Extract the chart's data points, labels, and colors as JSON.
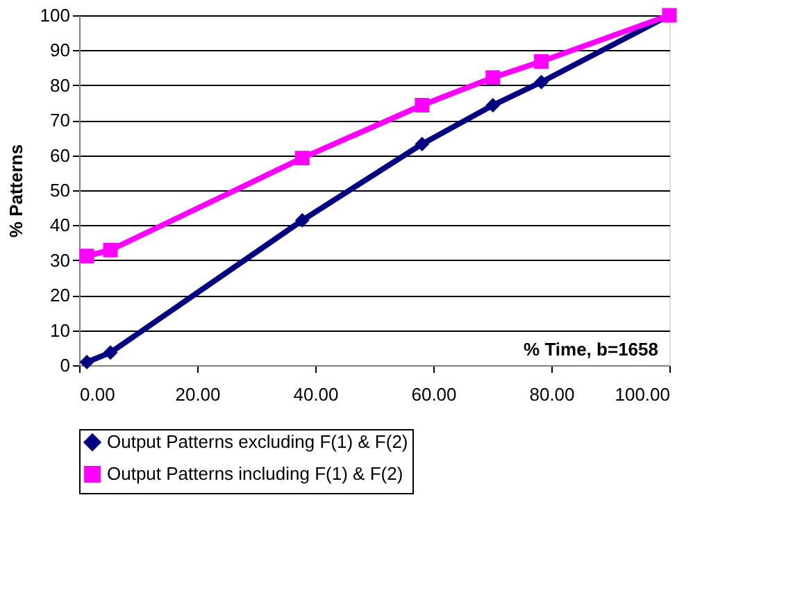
{
  "chart_data": {
    "type": "line",
    "xlabel": "% Time, b=1658",
    "ylabel": "% Patterns",
    "x": [
      1.3,
      5.3,
      37.8,
      58.1,
      70.1,
      78.3,
      100
    ],
    "series": [
      {
        "name": "Output Patterns excluding F(1) & F(2)",
        "color": "#000080",
        "marker": "diamond",
        "values": [
          0.9,
          3.6,
          41.4,
          63.2,
          74.3,
          80.9,
          100
        ]
      },
      {
        "name": "Output Patterns including F(1) & F(2)",
        "color": "#ff00ff",
        "marker": "square",
        "values": [
          31.2,
          32.9,
          59.2,
          74.3,
          82.2,
          86.8,
          100
        ]
      }
    ],
    "xlim": [
      0,
      100
    ],
    "xticks": [
      {
        "value": 0,
        "label": "0.00"
      },
      {
        "value": 20,
        "label": "20.00"
      },
      {
        "value": 40,
        "label": "40.00"
      },
      {
        "value": 60,
        "label": "60.00"
      },
      {
        "value": 80,
        "label": "80.00"
      },
      {
        "value": 100,
        "label": "100.00"
      }
    ],
    "ylim": [
      0,
      100
    ],
    "yticks": [
      0,
      10,
      20,
      30,
      40,
      50,
      60,
      70,
      80,
      90,
      100
    ],
    "grid": "y",
    "legend": "bottom",
    "line_style": "solid"
  }
}
